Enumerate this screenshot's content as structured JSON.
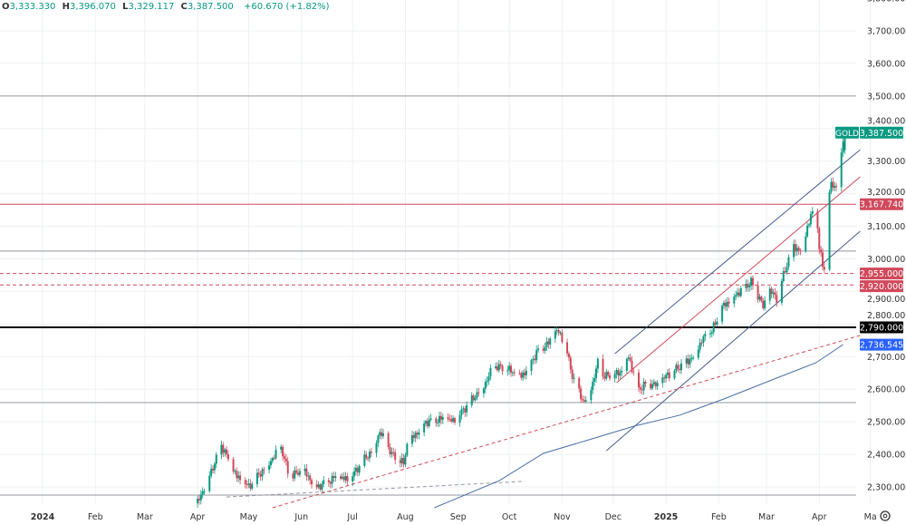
{
  "header": {
    "open_label": "O",
    "open": "3,333.330",
    "high_label": "H",
    "high": "3,396.070",
    "low_label": "L",
    "low": "3,329.117",
    "close_label": "C",
    "close": "3,387.500",
    "change": "+60.670 (+1.82%)"
  },
  "settings_icon": "gear-icon",
  "colors": {
    "up": "#089981",
    "down": "#d1495b",
    "blue": "#2962ff",
    "grid": "#eef0f3"
  },
  "chart_data": {
    "type": "candlestick",
    "symbol": "GOLD",
    "x_unit": "days since 2024-01-01",
    "ylim": [
      2270,
      3810
    ],
    "xlim": [
      -25,
      510
    ],
    "y_ticks": [
      {
        "v": 3800,
        "label": "3,800.000"
      },
      {
        "v": 3700,
        "label": "3,700.000"
      },
      {
        "v": 3600,
        "label": "3,600.000"
      },
      {
        "v": 3500,
        "label": "3,500.000"
      },
      {
        "v": 3400,
        "label": "3,400.000"
      },
      {
        "v": 3300,
        "label": "3,300.000"
      },
      {
        "v": 3200,
        "label": "3,200.000"
      },
      {
        "v": 3100,
        "label": "3,100.000"
      },
      {
        "v": 3000,
        "label": "3,000.000"
      },
      {
        "v": 2900,
        "label": "2,900.000"
      },
      {
        "v": 2800,
        "label": "2,800.000"
      },
      {
        "v": 2700,
        "label": "2,700.000"
      },
      {
        "v": 2600,
        "label": "2,600.000"
      },
      {
        "v": 2500,
        "label": "2,500.000"
      },
      {
        "v": 2400,
        "label": "2,400.000"
      },
      {
        "v": 2300,
        "label": "2,300.000"
      }
    ],
    "x_ticks": [
      {
        "d": 0,
        "label": "2024"
      },
      {
        "d": 31,
        "label": "Feb"
      },
      {
        "d": 60,
        "label": "Mar"
      },
      {
        "d": 91,
        "label": "Apr"
      },
      {
        "d": 121,
        "label": "May"
      },
      {
        "d": 152,
        "label": "Jun"
      },
      {
        "d": 182,
        "label": "Jul"
      },
      {
        "d": 213,
        "label": "Aug"
      },
      {
        "d": 244,
        "label": "Sep"
      },
      {
        "d": 274,
        "label": "Oct"
      },
      {
        "d": 305,
        "label": "Nov"
      },
      {
        "d": 335,
        "label": "Dec"
      },
      {
        "d": 366,
        "label": "2025"
      },
      {
        "d": 397,
        "label": "Feb"
      },
      {
        "d": 425,
        "label": "Mar"
      },
      {
        "d": 456,
        "label": "Apr"
      },
      {
        "d": 486,
        "label": "Ma"
      }
    ],
    "price_path": [
      [
        91,
        2250
      ],
      [
        103,
        2400
      ],
      [
        105,
        2430
      ],
      [
        114,
        2330
      ],
      [
        121,
        2300
      ],
      [
        140,
        2420
      ],
      [
        145,
        2330
      ],
      [
        153,
        2350
      ],
      [
        161,
        2300
      ],
      [
        172,
        2330
      ],
      [
        180,
        2320
      ],
      [
        188,
        2380
      ],
      [
        193,
        2410
      ],
      [
        198,
        2470
      ],
      [
        205,
        2400
      ],
      [
        212,
        2370
      ],
      [
        214,
        2430
      ],
      [
        225,
        2500
      ],
      [
        236,
        2510
      ],
      [
        241,
        2500
      ],
      [
        246,
        2530
      ],
      [
        254,
        2580
      ],
      [
        260,
        2620
      ],
      [
        265,
        2670
      ],
      [
        273,
        2660
      ],
      [
        281,
        2640
      ],
      [
        284,
        2660
      ],
      [
        291,
        2720
      ],
      [
        297,
        2740
      ],
      [
        302,
        2780
      ],
      [
        307,
        2740
      ],
      [
        310,
        2660
      ],
      [
        314,
        2600
      ],
      [
        318,
        2560
      ],
      [
        323,
        2620
      ],
      [
        326,
        2680
      ],
      [
        329,
        2640
      ],
      [
        334,
        2640
      ],
      [
        339,
        2650
      ],
      [
        344,
        2700
      ],
      [
        347,
        2650
      ],
      [
        350,
        2600
      ],
      [
        355,
        2620
      ],
      [
        361,
        2610
      ],
      [
        366,
        2640
      ],
      [
        374,
        2670
      ],
      [
        382,
        2700
      ],
      [
        387,
        2750
      ],
      [
        393,
        2780
      ],
      [
        395,
        2800
      ],
      [
        399,
        2850
      ],
      [
        403,
        2870
      ],
      [
        409,
        2900
      ],
      [
        416,
        2930
      ],
      [
        421,
        2880
      ],
      [
        423,
        2850
      ],
      [
        427,
        2900
      ],
      [
        431,
        2880
      ],
      [
        435,
        2950
      ],
      [
        438,
        3000
      ],
      [
        441,
        3040
      ],
      [
        446,
        3020
      ],
      [
        447,
        3050
      ],
      [
        449,
        3100
      ],
      [
        452,
        3140
      ],
      [
        455,
        3100
      ],
      [
        456,
        3030
      ],
      [
        458,
        2980
      ],
      [
        459,
        2970
      ],
      [
        460,
        3080
      ],
      [
        461,
        3160
      ],
      [
        463,
        3230
      ],
      [
        465,
        3220
      ],
      [
        467,
        3240
      ],
      [
        469,
        3330
      ],
      [
        471,
        3387.5
      ]
    ],
    "horizontal_levels": [
      {
        "v": 3500,
        "color": "#9598a1",
        "style": "solid"
      },
      {
        "v": 3167.74,
        "color": "#d1495b",
        "style": "solid",
        "label": "3,167.740"
      },
      {
        "v": 3024,
        "color": "#9598a1",
        "style": "solid"
      },
      {
        "v": 2955,
        "color": "#d1495b",
        "style": "dashed",
        "label": "2,955.000"
      },
      {
        "v": 2920,
        "color": "#d1495b",
        "style": "dashed",
        "label": "2,920.000"
      },
      {
        "v": 2790,
        "color": "#000000",
        "style": "bold",
        "label": "2,790.000"
      },
      {
        "v": 2559,
        "color": "#9598a1",
        "style": "solid"
      },
      {
        "v": 2275,
        "color": "#9598a1",
        "style": "solid"
      }
    ],
    "trendlines": [
      {
        "name": "channel-upper",
        "color": "#4a5b8c",
        "dash": false,
        "pts": [
          [
            336,
            2709
          ],
          [
            480,
            3335
          ]
        ]
      },
      {
        "name": "channel-mid",
        "color": "#d1495b",
        "dash": false,
        "pts": [
          [
            337,
            2620
          ],
          [
            480,
            3252
          ]
        ]
      },
      {
        "name": "channel-lower",
        "color": "#4a5b8c",
        "dash": false,
        "pts": [
          [
            331,
            2411
          ],
          [
            480,
            3085
          ]
        ]
      },
      {
        "name": "support-dashed",
        "color": "#d1495b",
        "dash": true,
        "pts": [
          [
            135,
            2236
          ],
          [
            480,
            2765
          ]
        ]
      },
      {
        "name": "grey-dashed",
        "color": "#9598a1",
        "dash": true,
        "pts": [
          [
            108,
            2269
          ],
          [
            282,
            2317
          ]
        ]
      },
      {
        "name": "moving-average",
        "color": "#4a6fa5",
        "dash": false,
        "pts": [
          [
            230,
            2236
          ],
          [
            268,
            2319
          ],
          [
            294,
            2403
          ],
          [
            321,
            2445
          ],
          [
            347,
            2486
          ],
          [
            374,
            2520
          ],
          [
            400,
            2570
          ],
          [
            427,
            2626
          ],
          [
            454,
            2681
          ],
          [
            470,
            2737
          ]
        ]
      }
    ],
    "last_price": {
      "symbol_tag": "GOLD",
      "label": "3,387.500",
      "v": 3387.5
    },
    "ma_value": {
      "label": "2,736.545",
      "v": 2736.545
    }
  }
}
